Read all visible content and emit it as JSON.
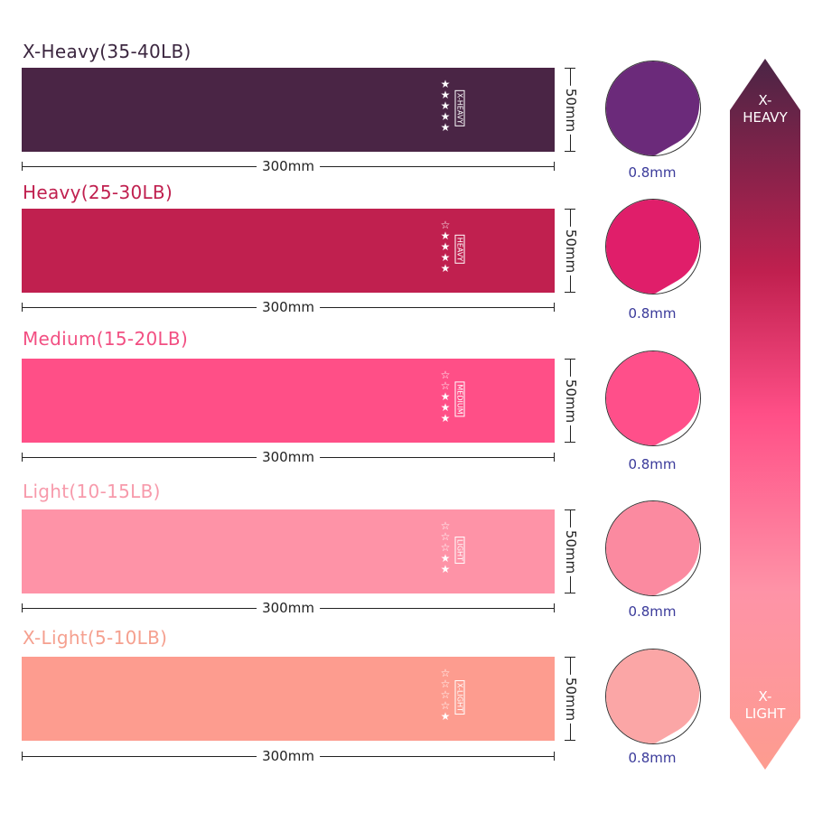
{
  "bands": [
    {
      "title": "X-Heavy(35-40LB)",
      "tag": "X-HEAVY",
      "stars_filled": 5,
      "stars_total": 5,
      "length": "300mm",
      "width": "50mm",
      "thickness": "0.8mm",
      "color": "#4a2545",
      "title_color": "#3c2740",
      "fold_color": "#6b2a7a"
    },
    {
      "title": "Heavy(25-30LB)",
      "tag": "HEAVY",
      "stars_filled": 4,
      "stars_total": 5,
      "length": "300mm",
      "width": "50mm",
      "thickness": "0.8mm",
      "color": "#c0204f",
      "title_color": "#c0204f",
      "fold_color": "#e01e6a"
    },
    {
      "title": "Medium(15-20LB)",
      "tag": "MEDIUM",
      "stars_filled": 3,
      "stars_total": 5,
      "length": "300mm",
      "width": "50mm",
      "thickness": "0.8mm",
      "color": "#ff4f87",
      "title_color": "#f24f82",
      "fold_color": "#ff4f8a"
    },
    {
      "title": "Light(10-15LB)",
      "tag": "LIGHT",
      "stars_filled": 2,
      "stars_total": 5,
      "length": "300mm",
      "width": "50mm",
      "thickness": "0.8mm",
      "color": "#fe93a7",
      "title_color": "#f79aab",
      "fold_color": "#fb8aa0"
    },
    {
      "title": "X-Light(5-10LB)",
      "tag": "X-LIGHT",
      "stars_filled": 1,
      "stars_total": 5,
      "length": "300mm",
      "width": "50mm",
      "thickness": "0.8mm",
      "color": "#fd9c8f",
      "title_color": "#f5a08f",
      "fold_color": "#fba6a6"
    }
  ],
  "scale": {
    "top_label": "X-\nHEAVY",
    "top_line1": "X-",
    "top_line2": "HEAVY",
    "bottom_line1": "X-",
    "bottom_line2": "LIGHT",
    "gradient": [
      "#4a2545",
      "#c0204f",
      "#ff4f87",
      "#fe93a7",
      "#fd9c8f"
    ]
  }
}
